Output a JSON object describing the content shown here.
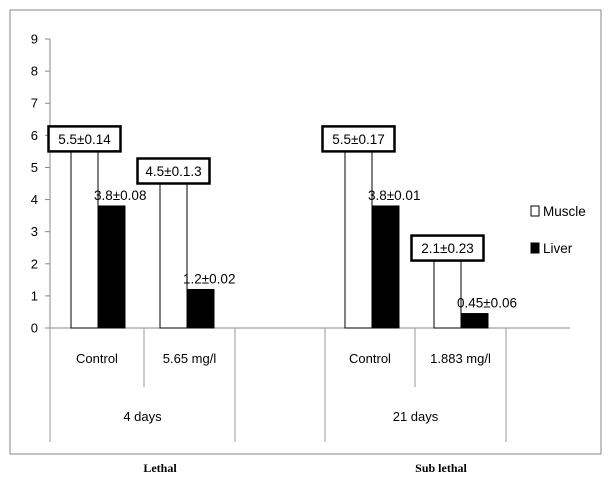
{
  "chart_data": {
    "type": "bar",
    "ylim": [
      0,
      9
    ],
    "yticks": [
      0,
      1,
      2,
      3,
      4,
      5,
      6,
      7,
      8,
      9
    ],
    "categories": [
      "Control",
      "5.65 mg/l",
      "Control",
      "1.883 mg/l"
    ],
    "groups": [
      {
        "label": "4 days",
        "categories": [
          0,
          1
        ]
      },
      {
        "label": "21 days",
        "categories": [
          2,
          3
        ]
      }
    ],
    "outer_labels": [
      "Lethal",
      "Sub lethal"
    ],
    "series": [
      {
        "name": "Muscle",
        "color": "#ffffff",
        "values": [
          5.5,
          4.5,
          5.5,
          2.1
        ],
        "labels": [
          "5.5±0.14",
          "4.5±0.1.3",
          "5.5±0.17",
          "2.1±0.23"
        ],
        "boxed": true
      },
      {
        "name": "Liver",
        "color": "#000000",
        "values": [
          3.8,
          1.2,
          3.8,
          0.45
        ],
        "labels": [
          "3.8±0.08",
          "1.2±0.02",
          "3.8±0.01",
          "0.45±0.06"
        ],
        "boxed": false
      }
    ],
    "legend": "right",
    "grid": false
  }
}
